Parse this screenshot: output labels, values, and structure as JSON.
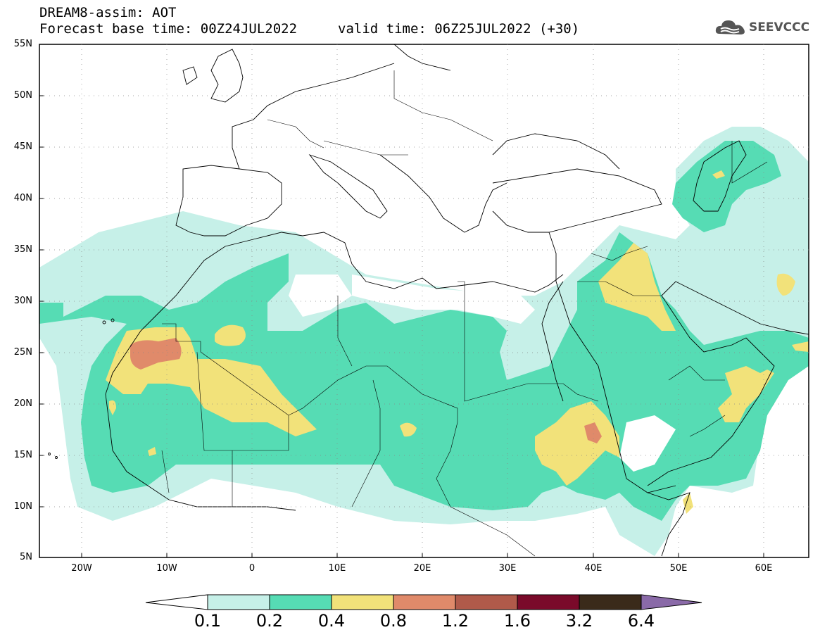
{
  "header": {
    "title": "DREAM8-assim: AOT",
    "base_time": "Forecast base time: 00Z24JUL2022",
    "valid_time": "valid time: 06Z25JUL2022 (+30)",
    "logo_text": "SEEVCCC"
  },
  "map": {
    "lat_ticks": [
      "55N",
      "50N",
      "45N",
      "40N",
      "35N",
      "30N",
      "25N",
      "20N",
      "15N",
      "10N",
      "5N"
    ],
    "lon_ticks": [
      "20W",
      "10W",
      "0",
      "10E",
      "20E",
      "30E",
      "40E",
      "50E",
      "60E"
    ],
    "colors": {
      "c01": "#c6f0e8",
      "c02": "#56dcb4",
      "c04": "#f2e27a",
      "c08": "#e08a6a",
      "c12": "#b05a4a",
      "c16": "#7a0a2a",
      "c32": "#3a2a1a",
      "c64": "#8a6aa8"
    }
  },
  "colorbar": {
    "labels": [
      "0.1",
      "0.2",
      "0.4",
      "0.8",
      "1.2",
      "1.6",
      "3.2",
      "6.4"
    ],
    "colors": [
      "#c6f0e8",
      "#56dcb4",
      "#f2e27a",
      "#e08a6a",
      "#b05a4a",
      "#7a0a2a",
      "#3a2a1a"
    ],
    "over_color": "#8a6aa8",
    "under_color": "#ffffff"
  }
}
